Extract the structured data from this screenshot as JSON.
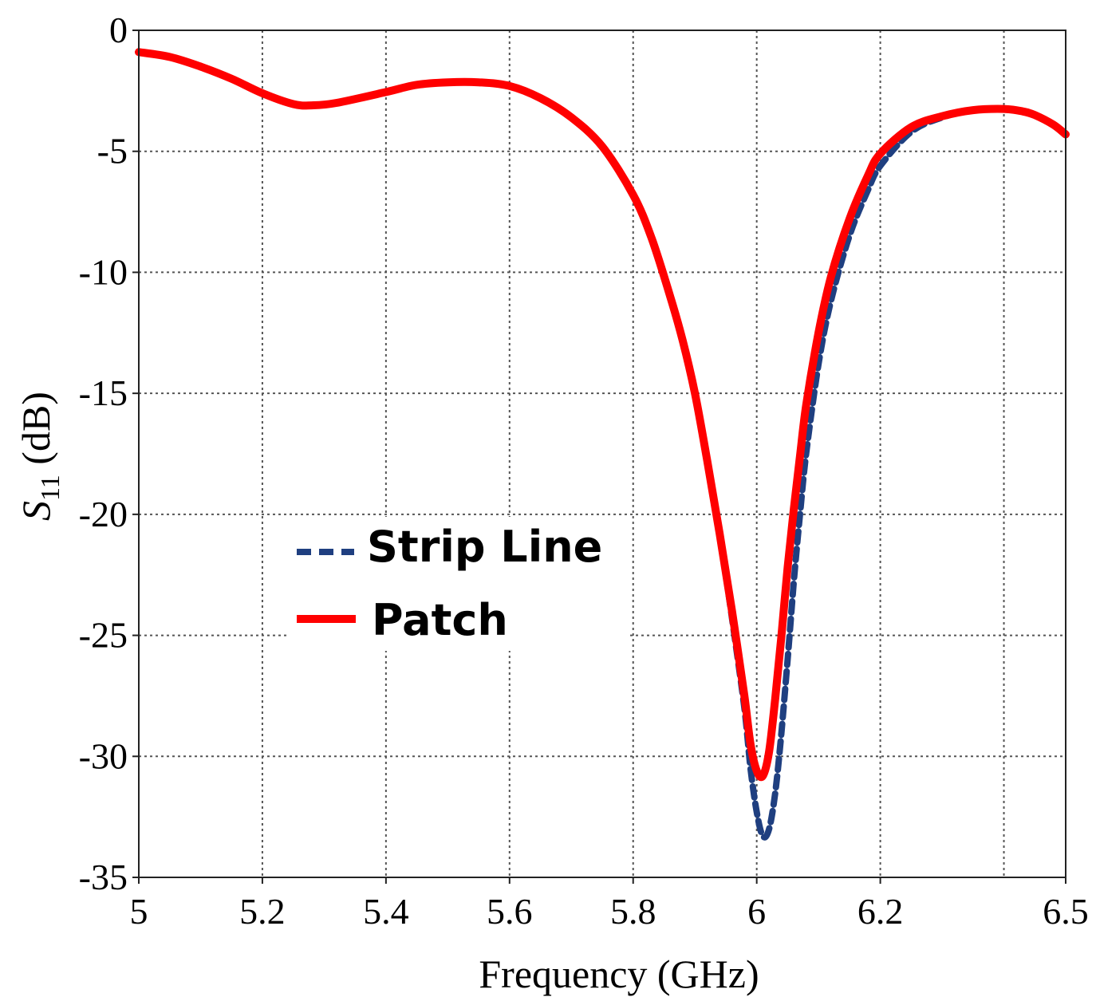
{
  "chart_data": {
    "type": "line",
    "title": "",
    "xlabel": "Frequency (GHz)",
    "ylabel_main": "S",
    "ylabel_sub": "11",
    "ylabel_unit": " (dB)",
    "xlim": [
      5,
      6.5
    ],
    "ylim": [
      -35,
      0
    ],
    "xticks": [
      5,
      5.2,
      5.4,
      5.6,
      5.8,
      6,
      6.2,
      6.5
    ],
    "xtick_labels": [
      "5",
      "5.2",
      "5.4",
      "5.6",
      "5.8",
      "6",
      "6.2",
      "6.5"
    ],
    "xgrid": [
      5,
      5.2,
      5.4,
      5.6,
      5.8,
      6,
      6.2,
      6.4,
      6.5
    ],
    "yticks": [
      0,
      -5,
      -10,
      -15,
      -20,
      -25,
      -30,
      -35
    ],
    "ytick_labels": [
      "0",
      "-5",
      "-10",
      "-15",
      "-20",
      "-25",
      "-30",
      "-35"
    ],
    "grid": true,
    "legend_position": "center-left",
    "series": [
      {
        "name": "Strip Line",
        "color": "#1f3f80",
        "style": "dashed",
        "x": [
          5.0,
          5.05,
          5.1,
          5.15,
          5.2,
          5.25,
          5.28,
          5.32,
          5.4,
          5.45,
          5.5,
          5.55,
          5.6,
          5.65,
          5.7,
          5.75,
          5.8,
          5.83,
          5.86,
          5.88,
          5.9,
          5.92,
          5.94,
          5.96,
          5.98,
          5.99,
          6.0,
          6.01,
          6.02,
          6.03,
          6.04,
          6.05,
          6.06,
          6.07,
          6.08,
          6.1,
          6.12,
          6.15,
          6.18,
          6.2,
          6.25,
          6.3,
          6.35,
          6.4,
          6.43,
          6.45,
          6.48,
          6.5
        ],
        "values": [
          -0.9,
          -1.1,
          -1.5,
          -2.0,
          -2.6,
          -3.05,
          -3.1,
          -3.0,
          -2.55,
          -2.25,
          -2.15,
          -2.15,
          -2.3,
          -2.8,
          -3.6,
          -4.8,
          -6.8,
          -8.6,
          -11.0,
          -12.8,
          -15.0,
          -17.8,
          -20.8,
          -24.3,
          -28.0,
          -30.5,
          -32.3,
          -33.3,
          -33.0,
          -31.5,
          -29.0,
          -26.0,
          -22.8,
          -20.0,
          -17.5,
          -13.8,
          -11.2,
          -8.5,
          -6.6,
          -5.6,
          -4.2,
          -3.6,
          -3.3,
          -3.25,
          -3.35,
          -3.5,
          -3.9,
          -4.3
        ]
      },
      {
        "name": "Patch",
        "color": "#ff0000",
        "style": "solid",
        "x": [
          5.0,
          5.05,
          5.1,
          5.15,
          5.2,
          5.25,
          5.28,
          5.32,
          5.4,
          5.45,
          5.5,
          5.55,
          5.6,
          5.65,
          5.7,
          5.75,
          5.8,
          5.83,
          5.86,
          5.88,
          5.9,
          5.92,
          5.94,
          5.96,
          5.98,
          5.99,
          6.0,
          6.01,
          6.02,
          6.03,
          6.04,
          6.05,
          6.06,
          6.07,
          6.08,
          6.1,
          6.12,
          6.15,
          6.18,
          6.2,
          6.25,
          6.3,
          6.35,
          6.4,
          6.43,
          6.45,
          6.48,
          6.5
        ],
        "values": [
          -0.9,
          -1.1,
          -1.5,
          -2.0,
          -2.6,
          -3.05,
          -3.1,
          -3.0,
          -2.55,
          -2.25,
          -2.15,
          -2.15,
          -2.3,
          -2.8,
          -3.6,
          -4.8,
          -6.8,
          -8.6,
          -11.0,
          -12.8,
          -15.0,
          -17.8,
          -20.8,
          -24.0,
          -27.5,
          -29.5,
          -30.6,
          -30.8,
          -29.8,
          -27.6,
          -25.0,
          -22.2,
          -19.8,
          -17.6,
          -15.5,
          -12.5,
          -10.2,
          -7.8,
          -6.0,
          -5.1,
          -4.0,
          -3.55,
          -3.3,
          -3.25,
          -3.35,
          -3.5,
          -3.9,
          -4.3
        ]
      }
    ]
  }
}
